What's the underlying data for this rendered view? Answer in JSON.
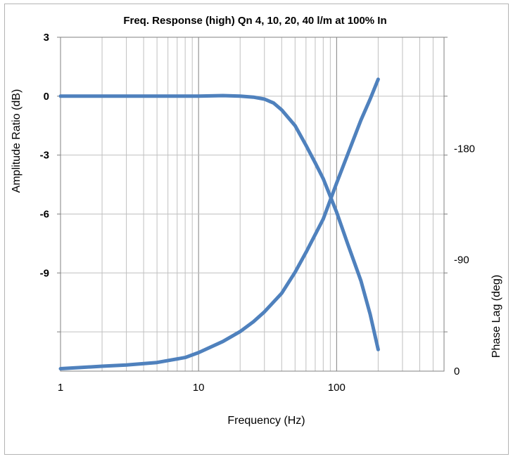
{
  "chart_data": {
    "type": "line",
    "title": "Freq. Response (high) Qn 4, 10, 20, 40 l/m at 100% In",
    "xlabel": "Frequency (Hz)",
    "ylabel": "Amplitude Ratio (dB)",
    "y2label": "Phase Lag (deg)",
    "x_scale": "log",
    "xlim": [
      1,
      600
    ],
    "ylim": [
      -14,
      3
    ],
    "y2lim": [
      0,
      270
    ],
    "x_ticks": [
      "1",
      "10",
      "100"
    ],
    "y_ticks": [
      "3",
      "0",
      "-3",
      "-6",
      "-9"
    ],
    "y2_ticks": [
      "-180",
      "-90",
      "0"
    ],
    "grid": true,
    "series": [
      {
        "axis": "left",
        "x": [
          1,
          5,
          10,
          15,
          20,
          25,
          30,
          35,
          40,
          50,
          60,
          70,
          80,
          100,
          120,
          150,
          175,
          200
        ],
        "values": [
          0,
          0,
          0,
          0.03,
          0,
          -0.05,
          -0.15,
          -0.35,
          -0.7,
          -1.5,
          -2.5,
          -3.4,
          -4.2,
          -5.9,
          -7.5,
          -9.4,
          -11.1,
          -12.9
        ]
      },
      {
        "axis": "right",
        "x": [
          1,
          2,
          3,
          5,
          8,
          10,
          15,
          20,
          25,
          30,
          40,
          50,
          60,
          80,
          100,
          120,
          150,
          175,
          200
        ],
        "values": [
          2,
          4,
          5,
          7,
          11,
          15,
          24,
          32,
          40,
          48,
          63,
          80,
          96,
          123,
          152,
          175,
          203,
          220,
          236
        ]
      }
    ],
    "colors": {
      "line": "#4f81bd",
      "grid": "#c0c0c0",
      "major_grid": "#808080",
      "frame": "#b4b4b4"
    }
  }
}
